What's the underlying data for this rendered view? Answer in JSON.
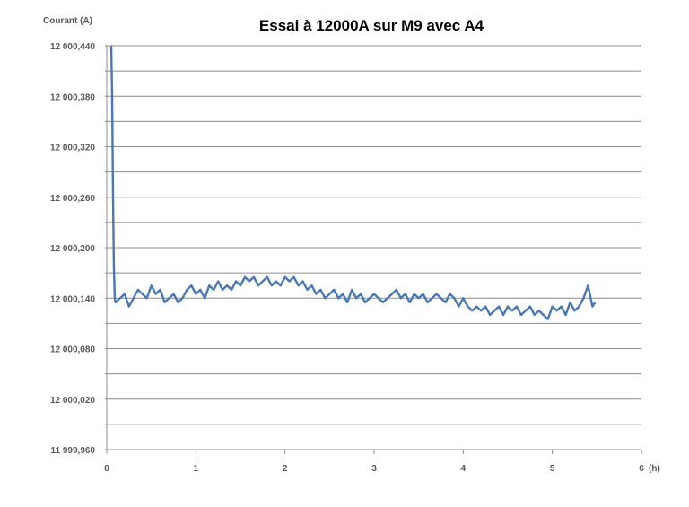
{
  "chart_data": {
    "type": "line",
    "title": "Essai à 12000A sur M9 avec A4",
    "ylabel": "Courant (A)",
    "xlabel": "",
    "x_unit_label": "(h)",
    "xlim": [
      0,
      6
    ],
    "ylim": [
      11999.96,
      12000.44
    ],
    "grid": true,
    "legend": "none",
    "y_ticks": [
      {
        "value": 11999.96,
        "label": "11 999,960"
      },
      {
        "value": 12000.02,
        "label": "12 000,020"
      },
      {
        "value": 12000.08,
        "label": "12 000,080"
      },
      {
        "value": 12000.14,
        "label": "12 000,140"
      },
      {
        "value": 12000.2,
        "label": "12 000,200"
      },
      {
        "value": 12000.26,
        "label": "12 000,260"
      },
      {
        "value": 12000.32,
        "label": "12 000,320"
      },
      {
        "value": 12000.38,
        "label": "12 000,380"
      },
      {
        "value": 12000.44,
        "label": "12 000,440"
      }
    ],
    "x_ticks": [
      {
        "value": 0,
        "label": "0"
      },
      {
        "value": 1,
        "label": "1"
      },
      {
        "value": 2,
        "label": "2"
      },
      {
        "value": 3,
        "label": "3"
      },
      {
        "value": 4,
        "label": "4"
      },
      {
        "value": 5,
        "label": "5"
      },
      {
        "value": 6,
        "label": "6"
      }
    ],
    "series": [
      {
        "color": "#4a78b5",
        "x": [
          0.05,
          0.06,
          0.07,
          0.08,
          0.09,
          0.1,
          0.15,
          0.2,
          0.25,
          0.3,
          0.35,
          0.4,
          0.45,
          0.5,
          0.55,
          0.6,
          0.65,
          0.7,
          0.75,
          0.8,
          0.85,
          0.9,
          0.95,
          1.0,
          1.05,
          1.1,
          1.15,
          1.2,
          1.25,
          1.3,
          1.35,
          1.4,
          1.45,
          1.5,
          1.55,
          1.6,
          1.65,
          1.7,
          1.75,
          1.8,
          1.85,
          1.9,
          1.95,
          2.0,
          2.05,
          2.1,
          2.15,
          2.2,
          2.25,
          2.3,
          2.35,
          2.4,
          2.45,
          2.5,
          2.55,
          2.6,
          2.65,
          2.7,
          2.75,
          2.8,
          2.85,
          2.9,
          2.95,
          3.0,
          3.05,
          3.1,
          3.15,
          3.2,
          3.25,
          3.3,
          3.35,
          3.4,
          3.45,
          3.5,
          3.55,
          3.6,
          3.65,
          3.7,
          3.75,
          3.8,
          3.85,
          3.9,
          3.95,
          4.0,
          4.05,
          4.1,
          4.15,
          4.2,
          4.25,
          4.3,
          4.35,
          4.4,
          4.45,
          4.5,
          4.55,
          4.6,
          4.65,
          4.7,
          4.75,
          4.8,
          4.85,
          4.9,
          4.95,
          5.0,
          5.05,
          5.1,
          5.15,
          5.2,
          5.25,
          5.3,
          5.35,
          5.4,
          5.45,
          5.48
        ],
        "y": [
          12000.44,
          12000.38,
          12000.26,
          12000.18,
          12000.14,
          12000.135,
          12000.14,
          12000.145,
          12000.13,
          12000.14,
          12000.15,
          12000.145,
          12000.14,
          12000.155,
          12000.145,
          12000.15,
          12000.135,
          12000.14,
          12000.145,
          12000.135,
          12000.14,
          12000.15,
          12000.155,
          12000.145,
          12000.15,
          12000.14,
          12000.155,
          12000.15,
          12000.16,
          12000.15,
          12000.155,
          12000.15,
          12000.16,
          12000.155,
          12000.165,
          12000.16,
          12000.165,
          12000.155,
          12000.16,
          12000.165,
          12000.155,
          12000.16,
          12000.155,
          12000.165,
          12000.16,
          12000.165,
          12000.155,
          12000.16,
          12000.15,
          12000.155,
          12000.145,
          12000.15,
          12000.14,
          12000.145,
          12000.15,
          12000.14,
          12000.145,
          12000.135,
          12000.15,
          12000.14,
          12000.145,
          12000.135,
          12000.14,
          12000.145,
          12000.14,
          12000.135,
          12000.14,
          12000.145,
          12000.15,
          12000.14,
          12000.145,
          12000.135,
          12000.145,
          12000.14,
          12000.145,
          12000.135,
          12000.14,
          12000.145,
          12000.14,
          12000.135,
          12000.145,
          12000.14,
          12000.13,
          12000.14,
          12000.13,
          12000.125,
          12000.13,
          12000.125,
          12000.13,
          12000.12,
          12000.125,
          12000.13,
          12000.12,
          12000.13,
          12000.125,
          12000.13,
          12000.12,
          12000.125,
          12000.13,
          12000.12,
          12000.125,
          12000.12,
          12000.115,
          12000.13,
          12000.125,
          12000.13,
          12000.12,
          12000.135,
          12000.125,
          12000.13,
          12000.14,
          12000.155,
          12000.13,
          12000.135
        ]
      }
    ]
  }
}
